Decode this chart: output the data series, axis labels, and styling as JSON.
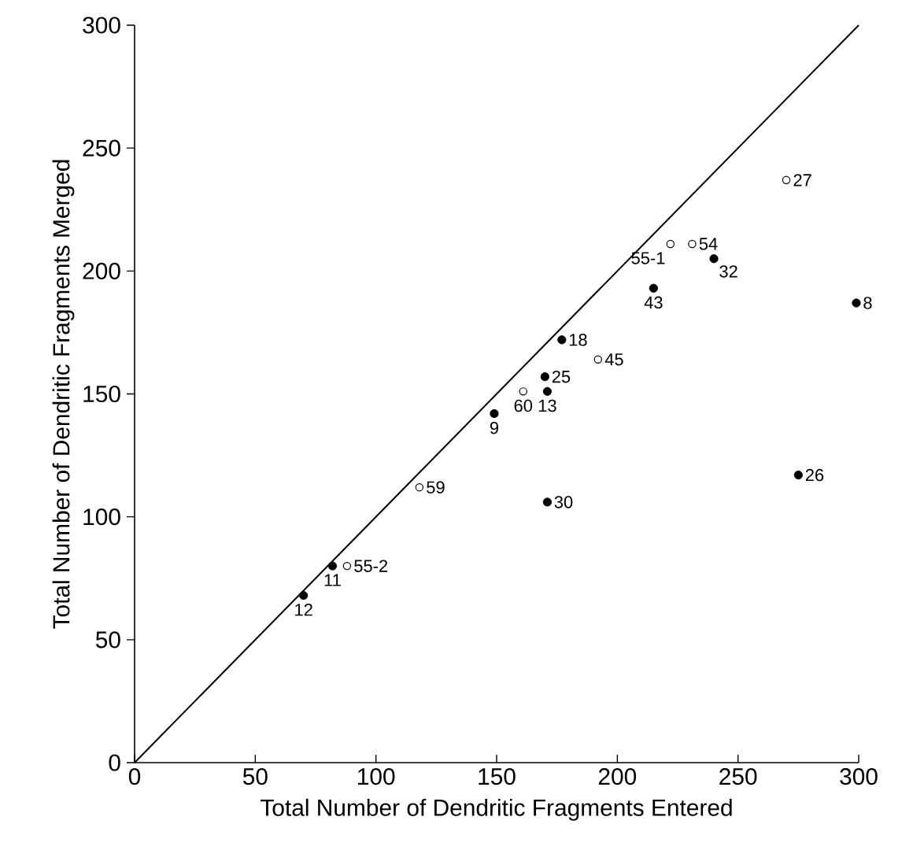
{
  "chart_data": {
    "type": "scatter",
    "xlabel": "Total Number of Dendritic Fragments Entered",
    "ylabel": "Total Number of Dendritic Fragments Merged",
    "xlim": [
      0,
      300
    ],
    "ylim": [
      0,
      300
    ],
    "xticks": [
      0,
      50,
      100,
      150,
      200,
      250,
      300
    ],
    "yticks": [
      0,
      50,
      100,
      150,
      200,
      250,
      300
    ],
    "grid": false,
    "series": [
      {
        "color": "#000000",
        "marker": "circle",
        "x": [
          240,
          215,
          299,
          177,
          170,
          171,
          149,
          275,
          171,
          82,
          70
        ],
        "values": [
          205,
          193,
          187,
          172,
          157,
          151,
          142,
          117,
          106,
          80,
          68
        ]
      },
      {
        "color": "#ffffff",
        "marker": "circle",
        "x": [
          270,
          231,
          222,
          192,
          161,
          118,
          88
        ],
        "values": [
          237,
          211,
          211,
          164,
          151,
          112,
          80
        ]
      },
      {
        "type": "line",
        "color": "#000000",
        "marker": "none",
        "x": [
          0,
          300
        ],
        "values": [
          0,
          300
        ]
      }
    ],
    "annotations": [
      {
        "text": "32",
        "x": 240,
        "y": 205
      },
      {
        "text": "43",
        "x": 215,
        "y": 193
      },
      {
        "text": "8",
        "x": 299,
        "y": 187
      },
      {
        "text": "18",
        "x": 177,
        "y": 172
      },
      {
        "text": "25",
        "x": 170,
        "y": 157
      },
      {
        "text": "13",
        "x": 171,
        "y": 151
      },
      {
        "text": "9",
        "x": 149,
        "y": 142
      },
      {
        "text": "26",
        "x": 275,
        "y": 117
      },
      {
        "text": "30",
        "x": 171,
        "y": 106
      },
      {
        "text": "11",
        "x": 82,
        "y": 80
      },
      {
        "text": "12",
        "x": 70,
        "y": 68
      },
      {
        "text": "27",
        "x": 270,
        "y": 237
      },
      {
        "text": "54",
        "x": 231,
        "y": 211
      },
      {
        "text": "55-1",
        "x": 222,
        "y": 211
      },
      {
        "text": "45",
        "x": 192,
        "y": 164
      },
      {
        "text": "60",
        "x": 161,
        "y": 151
      },
      {
        "text": "59",
        "x": 118,
        "y": 112
      },
      {
        "text": "55-2",
        "x": 88,
        "y": 80
      }
    ]
  }
}
